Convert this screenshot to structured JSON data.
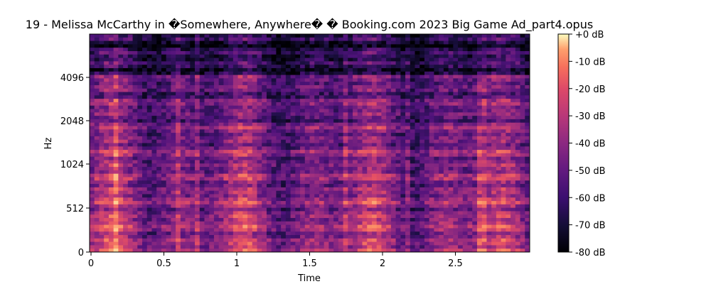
{
  "chart_data": {
    "type": "heatmap",
    "title": "19 - Melissa McCarthy in �Somewhere, Anywhere� � Booking.com 2023 Big Game Ad_part4.opus",
    "xlabel": "Time",
    "ylabel": "Hz",
    "x_ticks": [
      {
        "value": 0,
        "label": "0"
      },
      {
        "value": 0.5,
        "label": "0.5"
      },
      {
        "value": 1,
        "label": "1"
      },
      {
        "value": 1.5,
        "label": "1.5"
      },
      {
        "value": 2,
        "label": "2"
      },
      {
        "value": 2.5,
        "label": "2.5"
      }
    ],
    "y_ticks": [
      {
        "value": 0,
        "label": "0"
      },
      {
        "value": 512,
        "label": "512"
      },
      {
        "value": 1024,
        "label": "1024"
      },
      {
        "value": 2048,
        "label": "2048"
      },
      {
        "value": 4096,
        "label": "4096"
      }
    ],
    "xlim": [
      0,
      3.0
    ],
    "ylim": [
      0,
      8000
    ],
    "y_scale": "log2-mel",
    "colorbar": {
      "colormap": "magma",
      "range": [
        -80,
        0
      ],
      "ticks": [
        {
          "value": 0,
          "label": "+0 dB"
        },
        {
          "value": -10,
          "label": "-10 dB"
        },
        {
          "value": -20,
          "label": "-20 dB"
        },
        {
          "value": -30,
          "label": "-30 dB"
        },
        {
          "value": -40,
          "label": "-40 dB"
        },
        {
          "value": -50,
          "label": "-50 dB"
        },
        {
          "value": -60,
          "label": "-60 dB"
        },
        {
          "value": -70,
          "label": "-70 dB"
        },
        {
          "value": -80,
          "label": "-80 dB"
        }
      ]
    },
    "grid": false
  }
}
